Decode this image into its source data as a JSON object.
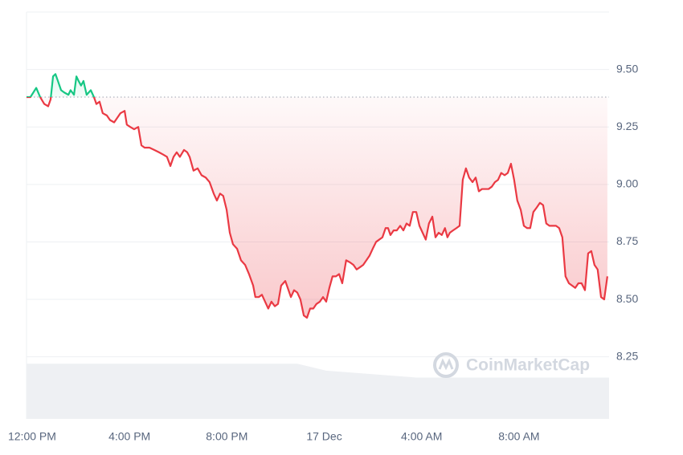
{
  "chart_data": {
    "type": "line",
    "watermark": "CoinMarketCap",
    "baseline": 9.38,
    "up_color": "#16c784",
    "down_color": "#ea3943",
    "xlim": [
      -0.23,
      23.7
    ],
    "ylim": [
      7.98,
      9.75
    ],
    "xticks": [
      {
        "value": 0,
        "label": "12:00 PM"
      },
      {
        "value": 4,
        "label": "4:00 PM"
      },
      {
        "value": 8,
        "label": "8:00 PM"
      },
      {
        "value": 12,
        "label": "17 Dec"
      },
      {
        "value": 16,
        "label": "4:00 AM"
      },
      {
        "value": 20,
        "label": "8:00 AM"
      }
    ],
    "yticks": [
      {
        "value": 8.25,
        "label": "8.25"
      },
      {
        "value": 8.5,
        "label": "8.50"
      },
      {
        "value": 8.75,
        "label": "8.75"
      },
      {
        "value": 9,
        "label": "9.00"
      },
      {
        "value": 9.25,
        "label": "9.25"
      },
      {
        "value": 9.5,
        "label": "9.50"
      }
    ],
    "grid": true,
    "x": [
      -0.23,
      -0.07,
      0.17,
      0.33,
      0.5,
      0.66,
      0.76,
      0.86,
      0.96,
      1.06,
      1.19,
      1.32,
      1.49,
      1.58,
      1.72,
      1.82,
      1.91,
      2.01,
      2.11,
      2.24,
      2.41,
      2.54,
      2.64,
      2.77,
      2.9,
      3.07,
      3.2,
      3.37,
      3.5,
      3.63,
      3.8,
      3.89,
      4.03,
      4.19,
      4.36,
      4.49,
      4.62,
      4.82,
      5.02,
      5.21,
      5.38,
      5.54,
      5.68,
      5.81,
      5.94,
      6.07,
      6.24,
      6.37,
      6.47,
      6.63,
      6.8,
      6.96,
      7.13,
      7.29,
      7.46,
      7.59,
      7.72,
      7.85,
      7.99,
      8.12,
      8.25,
      8.42,
      8.58,
      8.75,
      8.91,
      9.08,
      9.17,
      9.31,
      9.44,
      9.57,
      9.7,
      9.83,
      9.97,
      10.1,
      10.23,
      10.4,
      10.5,
      10.63,
      10.76,
      10.89,
      11.02,
      11.16,
      11.29,
      11.42,
      11.55,
      11.68,
      11.82,
      11.95,
      12.08,
      12.21,
      12.34,
      12.48,
      12.61,
      12.74,
      12.9,
      13.07,
      13.2,
      13.33,
      13.47,
      13.6,
      13.73,
      13.86,
      13.99,
      14.13,
      14.26,
      14.39,
      14.52,
      14.62,
      14.72,
      14.85,
      14.98,
      15.12,
      15.25,
      15.38,
      15.51,
      15.64,
      15.78,
      15.91,
      16.04,
      16.17,
      16.3,
      16.44,
      16.57,
      16.7,
      16.83,
      16.96,
      17.06,
      17.16,
      17.29,
      17.43,
      17.56,
      17.69,
      17.82,
      17.95,
      18.09,
      18.22,
      18.35,
      18.48,
      18.61,
      18.75,
      18.88,
      19.01,
      19.14,
      19.27,
      19.41,
      19.54,
      19.67,
      19.8,
      19.93,
      20.07,
      20.2,
      20.33,
      20.46,
      20.59,
      20.73,
      20.86,
      20.99,
      21.12,
      21.25,
      21.39,
      21.52,
      21.65,
      21.78,
      21.91,
      22.05,
      22.18,
      22.31,
      22.44,
      22.57,
      22.71,
      22.84,
      22.97,
      23.1,
      23.23,
      23.37,
      23.5,
      23.63
    ],
    "values": [
      9.38,
      9.38,
      9.42,
      9.38,
      9.35,
      9.34,
      9.37,
      9.47,
      9.48,
      9.45,
      9.41,
      9.4,
      9.39,
      9.41,
      9.39,
      9.47,
      9.45,
      9.43,
      9.45,
      9.39,
      9.41,
      9.38,
      9.35,
      9.36,
      9.31,
      9.3,
      9.28,
      9.27,
      9.29,
      9.31,
      9.32,
      9.26,
      9.25,
      9.24,
      9.25,
      9.17,
      9.16,
      9.16,
      9.15,
      9.14,
      9.13,
      9.12,
      9.08,
      9.12,
      9.14,
      9.12,
      9.15,
      9.14,
      9.12,
      9.06,
      9.07,
      9.04,
      9.03,
      9.01,
      8.96,
      8.93,
      8.96,
      8.95,
      8.89,
      8.79,
      8.74,
      8.72,
      8.67,
      8.65,
      8.61,
      8.56,
      8.51,
      8.51,
      8.52,
      8.49,
      8.46,
      8.49,
      8.47,
      8.48,
      8.56,
      8.58,
      8.55,
      8.51,
      8.54,
      8.53,
      8.5,
      8.43,
      8.42,
      8.46,
      8.46,
      8.48,
      8.49,
      8.51,
      8.49,
      8.55,
      8.6,
      8.6,
      8.61,
      8.57,
      8.67,
      8.66,
      8.65,
      8.63,
      8.64,
      8.65,
      8.67,
      8.69,
      8.72,
      8.75,
      8.76,
      8.77,
      8.81,
      8.81,
      8.78,
      8.8,
      8.8,
      8.82,
      8.8,
      8.83,
      8.82,
      8.88,
      8.88,
      8.82,
      8.79,
      8.76,
      8.83,
      8.86,
      8.77,
      8.79,
      8.78,
      8.81,
      8.77,
      8.79,
      8.8,
      8.81,
      8.82,
      9.02,
      9.07,
      9.03,
      9.01,
      9.03,
      8.97,
      8.98,
      8.98,
      8.98,
      8.99,
      9.01,
      9.02,
      9.05,
      9.04,
      9.05,
      9.09,
      9.02,
      8.93,
      8.89,
      8.82,
      8.81,
      8.81,
      8.88,
      8.9,
      8.92,
      8.91,
      8.83,
      8.82,
      8.82,
      8.82,
      8.81,
      8.77,
      8.6,
      8.57,
      8.56,
      8.55,
      8.57,
      8.57,
      8.54,
      8.7,
      8.71,
      8.65,
      8.63,
      8.51,
      8.5,
      8.6
    ],
    "volume": {
      "color": "#eef0f3",
      "x": [
        -0.23,
        10.89,
        12.08,
        15.78,
        23.7
      ],
      "values": [
        8.22,
        8.22,
        8.19,
        8.16,
        8.16
      ]
    }
  }
}
